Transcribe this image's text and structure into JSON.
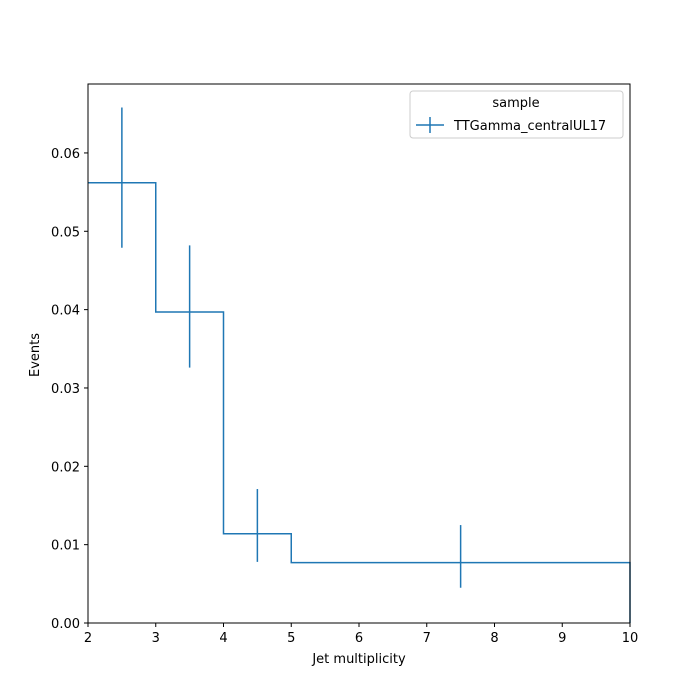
{
  "chart_data": {
    "type": "line",
    "style": "step histogram with error bars",
    "xlabel": "Jet multiplicity",
    "ylabel": "Events",
    "xlim": [
      2,
      10
    ],
    "ylim": [
      0,
      0.0688
    ],
    "x_ticks": [
      "2",
      "3",
      "4",
      "5",
      "6",
      "7",
      "8",
      "9",
      "10"
    ],
    "y_ticks": [
      "0.00",
      "0.01",
      "0.02",
      "0.03",
      "0.04",
      "0.05",
      "0.06"
    ],
    "grid": false,
    "legend": {
      "title": "sample",
      "placement": "upper right"
    },
    "bin_edges": [
      2,
      3,
      4,
      5,
      10
    ],
    "series": [
      {
        "name": "TTGamma_centralUL17",
        "color": "#1f77b4",
        "bin_centers": [
          2.5,
          3.5,
          4.5,
          7.5
        ],
        "values": [
          0.0562,
          0.0397,
          0.0114,
          0.0077
        ],
        "err_low": [
          0.0479,
          0.0326,
          0.0078,
          0.0045
        ],
        "err_high": [
          0.0658,
          0.0482,
          0.0171,
          0.0125
        ]
      }
    ]
  }
}
